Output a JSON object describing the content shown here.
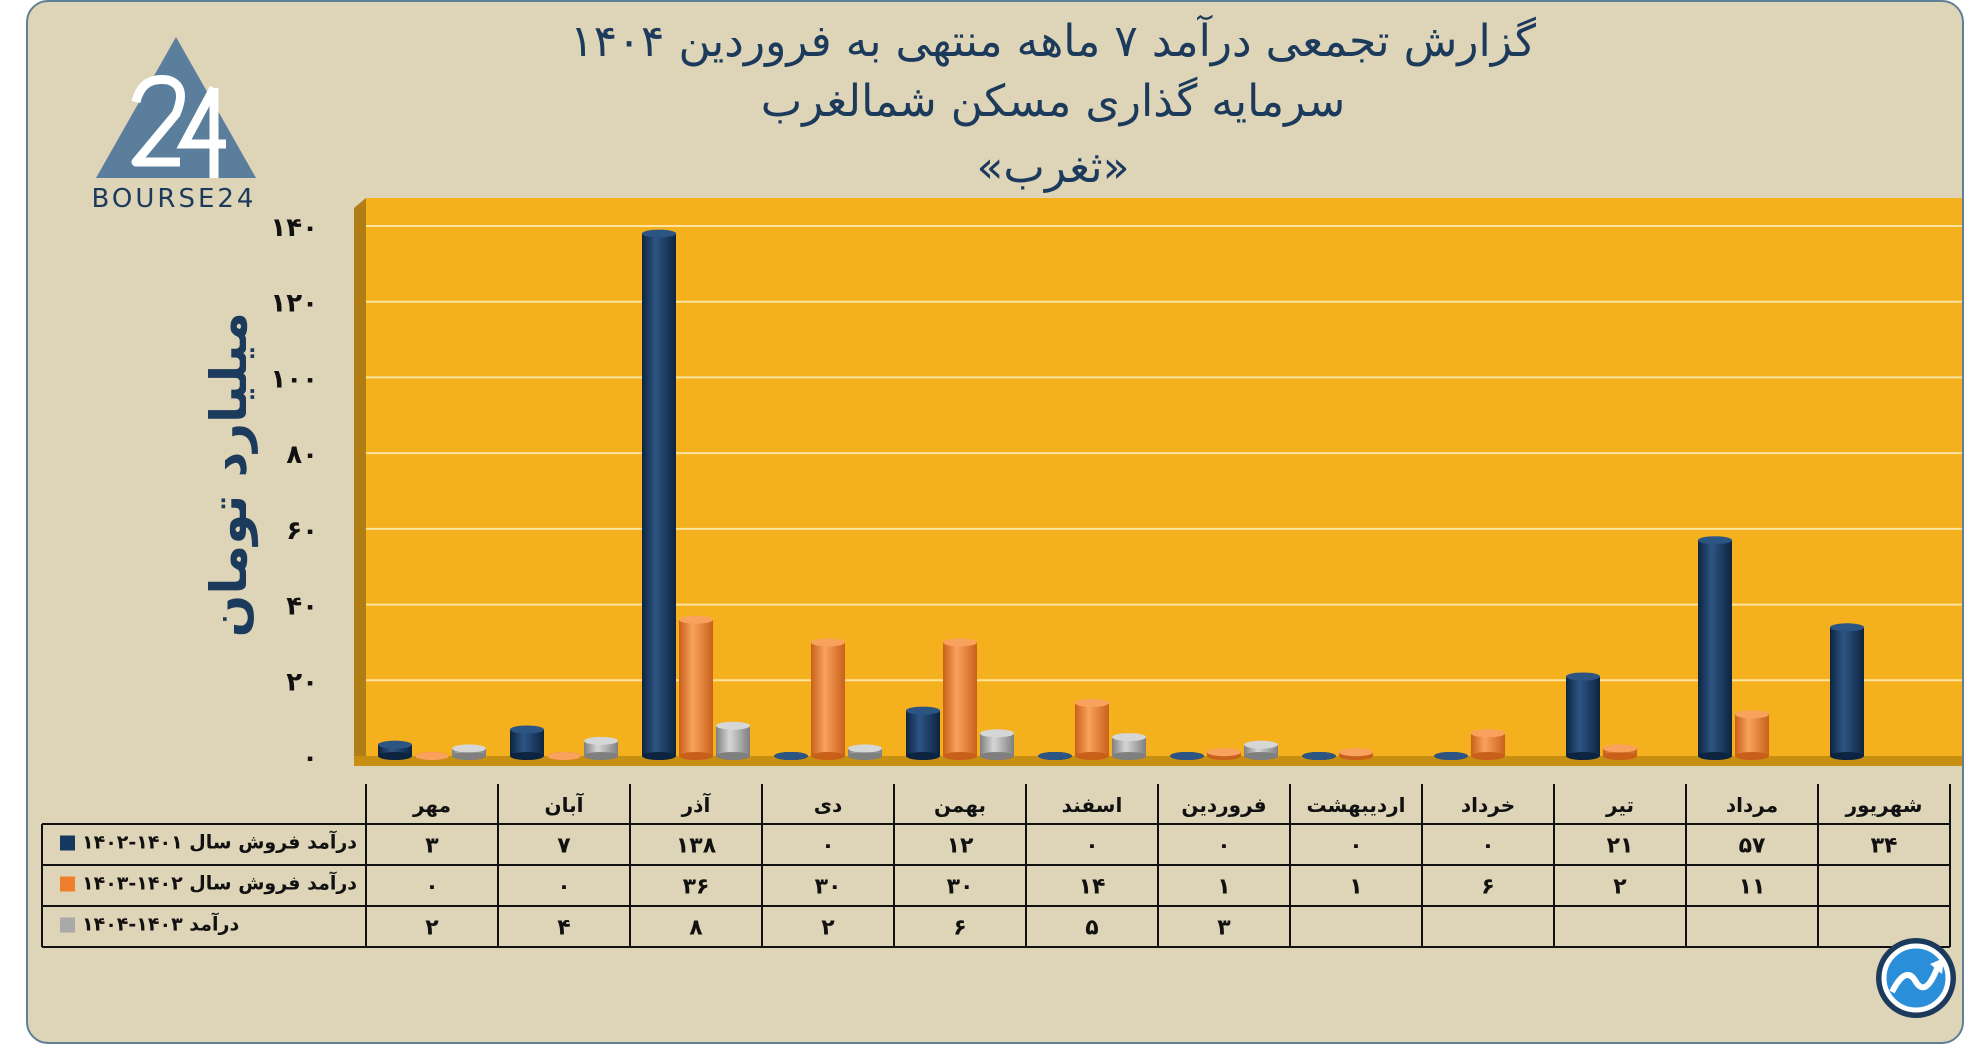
{
  "title": {
    "line1": "گزارش تجمعی درآمد ۷ ماهه منتهی به فروردین ۱۴۰۴",
    "line2": "سرمایه گذاری مسکن شمالغرب",
    "line3": "«ثغرب»"
  },
  "logo": {
    "text": "BOURSE24",
    "icon": "bourse24-triangle-logo"
  },
  "corner_icon": "trend-chart-circle-icon",
  "colors": {
    "background": "#ded4b7",
    "plot": "#f5b01e",
    "series1": "#17385e",
    "series2": "#ef7f2c",
    "series3": "#a9a9a9",
    "text": "#1b3a5c"
  },
  "chart_data": {
    "type": "bar",
    "ylabel": "میلیارد تومان",
    "ylim": [
      0,
      140
    ],
    "yticks": [
      "۰",
      "۲۰",
      "۴۰",
      "۶۰",
      "۸۰",
      "۱۰۰",
      "۱۲۰",
      "۱۴۰"
    ],
    "categories": [
      "مهر",
      "آبان",
      "آذر",
      "دی",
      "بهمن",
      "اسفند",
      "فروردین",
      "اردیبهشت",
      "خرداد",
      "تیر",
      "مرداد",
      "شهریور"
    ],
    "series": [
      {
        "name": "درآمد فروش سال ۱۴۰۱-۱۴۰۲",
        "values": [
          3,
          7,
          138,
          0,
          12,
          0,
          0,
          0,
          0,
          21,
          57,
          34
        ],
        "labels": [
          "۳",
          "۷",
          "۱۳۸",
          "۰",
          "۱۲",
          "۰",
          "۰",
          "۰",
          "۰",
          "۲۱",
          "۵۷",
          "۳۴"
        ]
      },
      {
        "name": "درآمد فروش سال ۱۴۰۲-۱۴۰۳",
        "values": [
          0,
          0,
          36,
          30,
          30,
          14,
          1,
          1,
          6,
          2,
          11,
          null
        ],
        "labels": [
          "۰",
          "۰",
          "۳۶",
          "۳۰",
          "۳۰",
          "۱۴",
          "۱",
          "۱",
          "۶",
          "۲",
          "۱۱",
          ""
        ]
      },
      {
        "name": "درآمد ۱۴۰۳-۱۴۰۴",
        "values": [
          2,
          4,
          8,
          2,
          6,
          5,
          3,
          null,
          null,
          null,
          null,
          null
        ],
        "labels": [
          "۲",
          "۴",
          "۸",
          "۲",
          "۶",
          "۵",
          "۳",
          "",
          "",
          "",
          "",
          ""
        ]
      }
    ],
    "grid": true,
    "legend": "data-table-left"
  }
}
